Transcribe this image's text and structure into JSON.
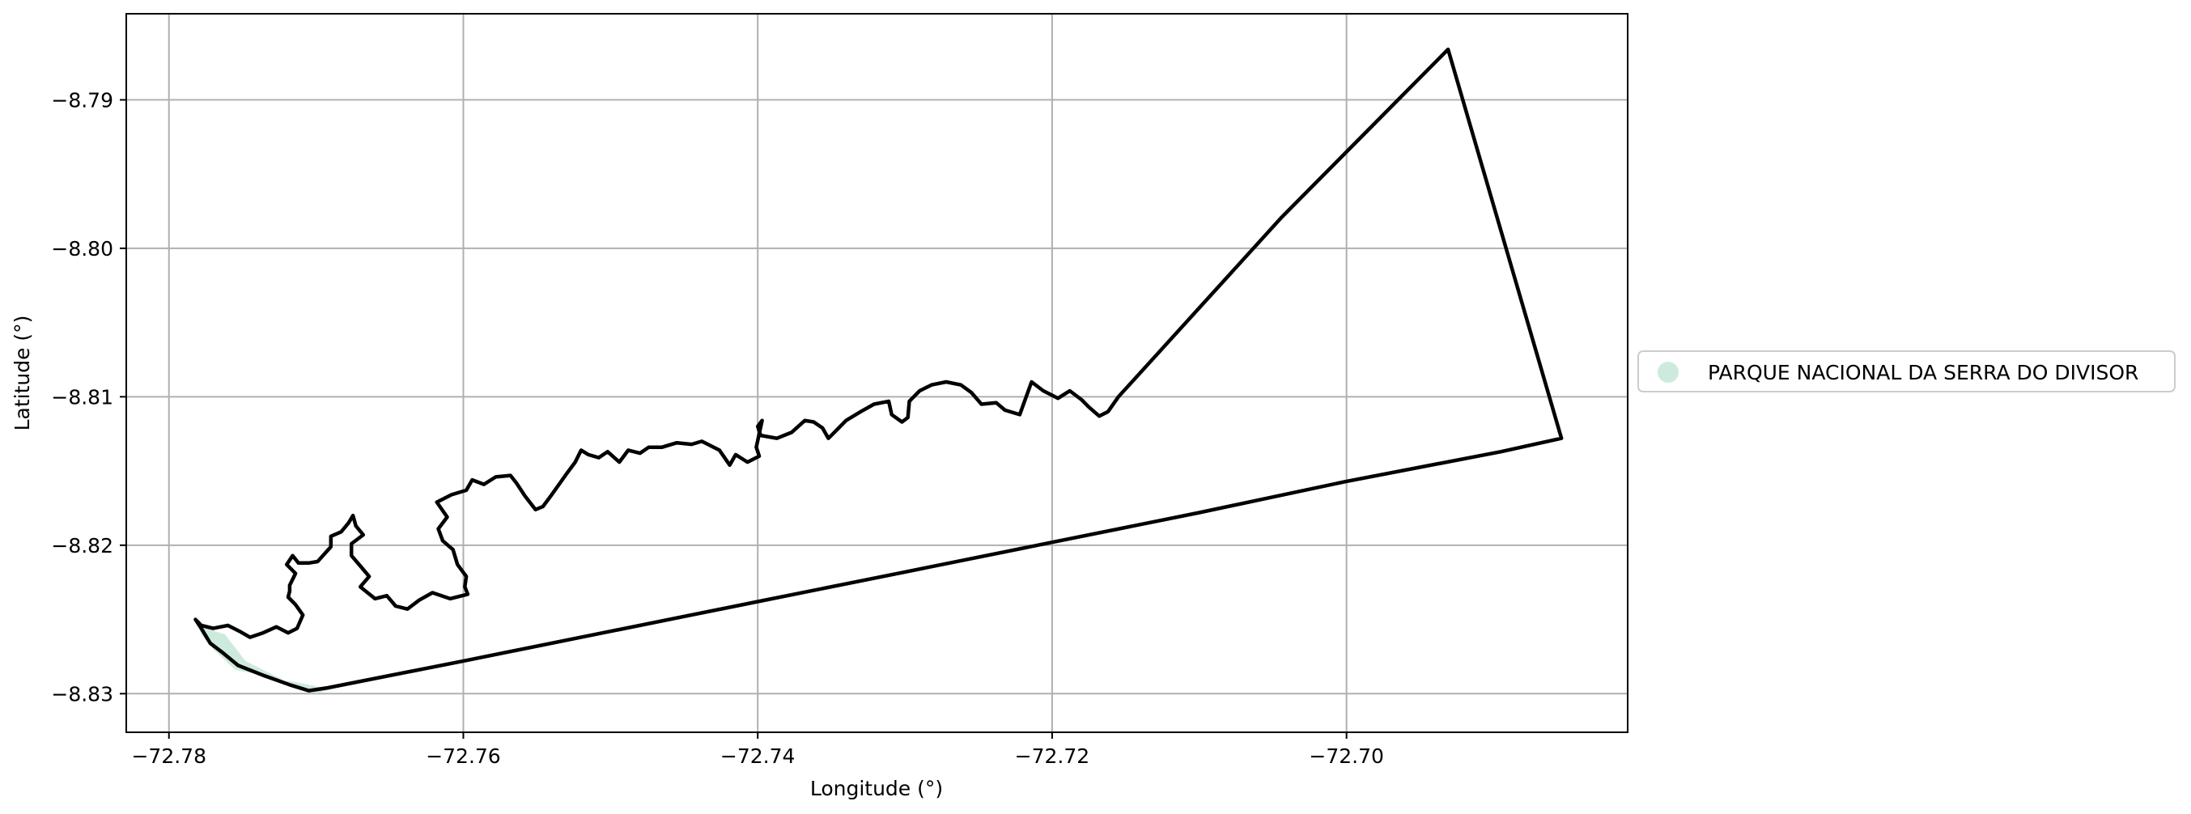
{
  "chart_data": {
    "type": "map",
    "xlabel": "Longitude (°)",
    "ylabel": "Latitude (°)",
    "xlim": [
      -72.7829,
      -72.6809
    ],
    "ylim": [
      -8.8326,
      -8.7842
    ],
    "xticks": [
      -72.78,
      -72.76,
      -72.74,
      -72.72,
      -72.7
    ],
    "xtick_labels": [
      "−72.78",
      "−72.76",
      "−72.74",
      "−72.72",
      "−72.70"
    ],
    "yticks": [
      -8.79,
      -8.8,
      -8.81,
      -8.82,
      -8.83
    ],
    "ytick_labels": [
      "−8.79",
      "−8.80",
      "−8.81",
      "−8.82",
      "−8.83"
    ],
    "grid": true,
    "legend_position": "right-center",
    "legend": [
      {
        "label": "PARQUE NACIONAL DA SERRA DO DIVISOR",
        "color": "#cdebdd"
      }
    ],
    "shaded_area": {
      "name": "PARQUE NACIONAL DA SERRA DO DIVISOR",
      "fill": "#cdebdd",
      "points": [
        [
          -72.7782,
          -8.825
        ],
        [
          -72.7775,
          -8.8256
        ],
        [
          -72.7762,
          -8.826
        ],
        [
          -72.7748,
          -8.8278
        ],
        [
          -72.7728,
          -8.8288
        ],
        [
          -72.77,
          -8.83
        ],
        [
          -72.769,
          -8.8297
        ],
        [
          -72.7725,
          -8.829
        ],
        [
          -72.7755,
          -8.8284
        ],
        [
          -72.777,
          -8.827
        ],
        [
          -72.7778,
          -8.826
        ]
      ]
    },
    "boundary": {
      "stroke": "#000000",
      "points": [
        [
          -72.7782,
          -8.825
        ],
        [
          -72.7778,
          -8.8256
        ],
        [
          -72.7772,
          -8.8266
        ],
        [
          -72.7764,
          -8.8272
        ],
        [
          -72.7753,
          -8.8281
        ],
        [
          -72.7735,
          -8.8288
        ],
        [
          -72.7718,
          -8.8294
        ],
        [
          -72.7705,
          -8.8298
        ],
        [
          -72.7692,
          -8.8296
        ],
        [
          -72.76,
          -8.8278
        ],
        [
          -72.75,
          -8.8258
        ],
        [
          -72.74,
          -8.8238
        ],
        [
          -72.73,
          -8.8218
        ],
        [
          -72.72,
          -8.8198
        ],
        [
          -72.71,
          -8.8178
        ],
        [
          -72.7,
          -8.8157
        ],
        [
          -72.6895,
          -8.8137
        ],
        [
          -72.6854,
          -8.8128
        ],
        [
          -72.6931,
          -8.7866
        ],
        [
          -72.7044,
          -8.7979
        ],
        [
          -72.7155,
          -8.81
        ],
        [
          -72.7162,
          -8.811
        ],
        [
          -72.7168,
          -8.8113
        ],
        [
          -72.7175,
          -8.8107
        ],
        [
          -72.718,
          -8.8102
        ],
        [
          -72.7188,
          -8.8096
        ],
        [
          -72.7196,
          -8.8101
        ],
        [
          -72.7206,
          -8.8096
        ],
        [
          -72.7214,
          -8.809
        ],
        [
          -72.7222,
          -8.8112
        ],
        [
          -72.7232,
          -8.8109
        ],
        [
          -72.7238,
          -8.8104
        ],
        [
          -72.7248,
          -8.8105
        ],
        [
          -72.7255,
          -8.8097
        ],
        [
          -72.7262,
          -8.8092
        ],
        [
          -72.7272,
          -8.809
        ],
        [
          -72.7282,
          -8.8092
        ],
        [
          -72.729,
          -8.8096
        ],
        [
          -72.7297,
          -8.8103
        ],
        [
          -72.7298,
          -8.8114
        ],
        [
          -72.7302,
          -8.8117
        ],
        [
          -72.7309,
          -8.8112
        ],
        [
          -72.7311,
          -8.8103
        ],
        [
          -72.7321,
          -8.8105
        ],
        [
          -72.733,
          -8.811
        ],
        [
          -72.734,
          -8.8116
        ],
        [
          -72.7348,
          -8.8124
        ],
        [
          -72.7352,
          -8.8128
        ],
        [
          -72.7356,
          -8.8121
        ],
        [
          -72.7362,
          -8.8117
        ],
        [
          -72.7368,
          -8.8116
        ],
        [
          -72.7377,
          -8.8124
        ],
        [
          -72.7387,
          -8.8128
        ],
        [
          -72.7398,
          -8.8126
        ],
        [
          -72.74,
          -8.812
        ],
        [
          -72.7397,
          -8.8116
        ],
        [
          -72.7401,
          -8.8134
        ],
        [
          -72.7399,
          -8.814
        ],
        [
          -72.7407,
          -8.8144
        ],
        [
          -72.7415,
          -8.8139
        ],
        [
          -72.7419,
          -8.8146
        ],
        [
          -72.7426,
          -8.8136
        ],
        [
          -72.7438,
          -8.813
        ],
        [
          -72.7445,
          -8.8132
        ],
        [
          -72.7455,
          -8.8131
        ],
        [
          -72.7465,
          -8.8134
        ],
        [
          -72.7474,
          -8.8134
        ],
        [
          -72.748,
          -8.8138
        ],
        [
          -72.7488,
          -8.8136
        ],
        [
          -72.7494,
          -8.8144
        ],
        [
          -72.7502,
          -8.8137
        ],
        [
          -72.7508,
          -8.8141
        ],
        [
          -72.7515,
          -8.8139
        ],
        [
          -72.752,
          -8.8136
        ],
        [
          -72.7524,
          -8.8144
        ],
        [
          -72.753,
          -8.8152
        ],
        [
          -72.754,
          -8.8166
        ],
        [
          -72.7546,
          -8.8174
        ],
        [
          -72.7551,
          -8.8176
        ],
        [
          -72.7558,
          -8.8167
        ],
        [
          -72.7564,
          -8.8158
        ],
        [
          -72.7568,
          -8.8153
        ],
        [
          -72.7578,
          -8.8154
        ],
        [
          -72.7586,
          -8.8159
        ],
        [
          -72.7594,
          -8.8156
        ],
        [
          -72.7598,
          -8.8163
        ],
        [
          -72.7608,
          -8.8166
        ],
        [
          -72.7618,
          -8.8171
        ],
        [
          -72.7611,
          -8.8181
        ],
        [
          -72.7617,
          -8.8189
        ],
        [
          -72.7614,
          -8.8197
        ],
        [
          -72.7607,
          -8.8203
        ],
        [
          -72.7604,
          -8.8213
        ],
        [
          -72.7598,
          -8.8221
        ],
        [
          -72.7599,
          -8.8228
        ],
        [
          -72.7597,
          -8.8233
        ],
        [
          -72.7609,
          -8.8236
        ],
        [
          -72.7621,
          -8.8232
        ],
        [
          -72.763,
          -8.8237
        ],
        [
          -72.7638,
          -8.8243
        ],
        [
          -72.7646,
          -8.8241
        ],
        [
          -72.7652,
          -8.8234
        ],
        [
          -72.766,
          -8.8236
        ],
        [
          -72.767,
          -8.8228
        ],
        [
          -72.7664,
          -8.8221
        ],
        [
          -72.767,
          -8.8214
        ],
        [
          -72.7676,
          -8.8207
        ],
        [
          -72.7676,
          -8.8199
        ],
        [
          -72.7668,
          -8.8193
        ],
        [
          -72.7673,
          -8.8187
        ],
        [
          -72.7675,
          -8.818
        ],
        [
          -72.7678,
          -8.8185
        ],
        [
          -72.7683,
          -8.8191
        ],
        [
          -72.769,
          -8.8194
        ],
        [
          -72.769,
          -8.8201
        ],
        [
          -72.7699,
          -8.8211
        ],
        [
          -72.7705,
          -8.8212
        ],
        [
          -72.7712,
          -8.8212
        ],
        [
          -72.7716,
          -8.8207
        ],
        [
          -72.772,
          -8.8213
        ],
        [
          -72.7714,
          -8.8219
        ],
        [
          -72.7718,
          -8.8227
        ],
        [
          -72.7718,
          -8.8231
        ],
        [
          -72.7719,
          -8.8235
        ],
        [
          -72.7714,
          -8.824
        ],
        [
          -72.7709,
          -8.8247
        ],
        [
          -72.7713,
          -8.8256
        ],
        [
          -72.7719,
          -8.8259
        ],
        [
          -72.7727,
          -8.8255
        ],
        [
          -72.7736,
          -8.8259
        ],
        [
          -72.7745,
          -8.8262
        ],
        [
          -72.7752,
          -8.8258
        ],
        [
          -72.776,
          -8.8254
        ],
        [
          -72.777,
          -8.8256
        ],
        [
          -72.7778,
          -8.8254
        ],
        [
          -72.7782,
          -8.825
        ]
      ]
    }
  }
}
